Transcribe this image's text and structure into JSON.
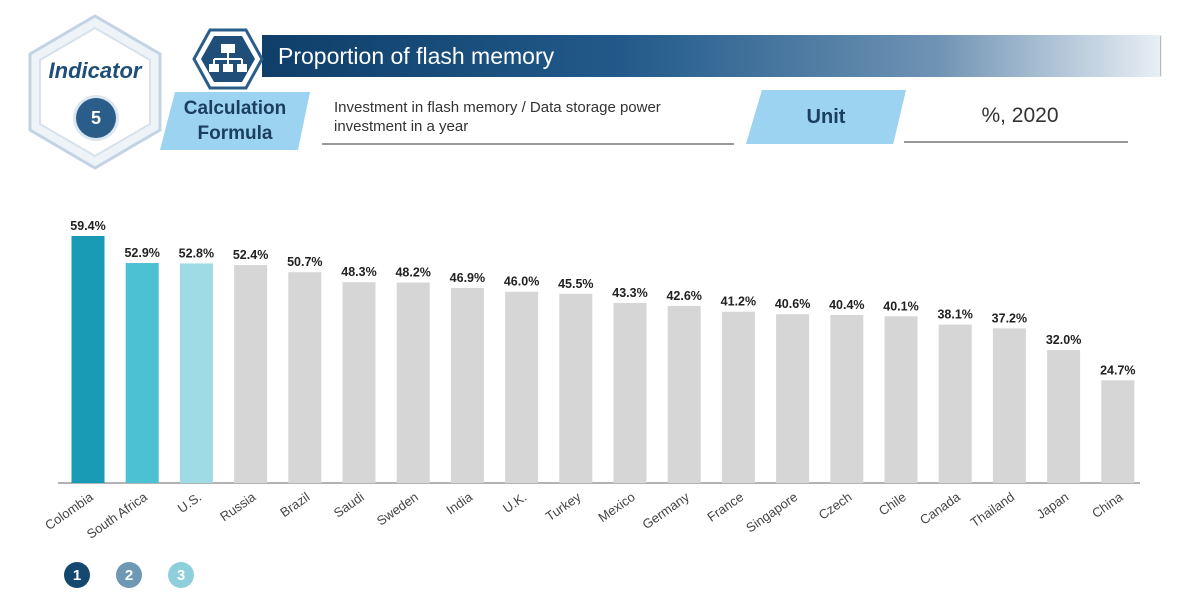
{
  "header": {
    "indicator_label": "Indicator",
    "indicator_number": "5",
    "title": "Proportion of flash memory",
    "formula_label_line1": "Calculation",
    "formula_label_line2": "Formula",
    "formula_line1": "Investment in flash memory / Data storage power",
    "formula_line2": "investment in a year",
    "unit_label": "Unit",
    "unit_value": "%, 2020",
    "title_icon": "network-hierarchy-icon"
  },
  "colors": {
    "rank1": "#1a9bb5",
    "rank2": "#4cc1d3",
    "rank3": "#9edbe5",
    "other": "#d6d6d6",
    "legend1": "#15486f",
    "legend2": "#6f98b5",
    "legend3": "#8fcfdc"
  },
  "legend": [
    {
      "label": "1"
    },
    {
      "label": "2"
    },
    {
      "label": "3"
    }
  ],
  "chart_data": {
    "type": "bar",
    "categories": [
      "Colombia",
      "South Africa",
      "U.S.",
      "Russia",
      "Brazil",
      "Saudi",
      "Sweden",
      "India",
      "U.K.",
      "Turkey",
      "Mexico",
      "Germany",
      "France",
      "Singapore",
      "Czech",
      "Chile",
      "Canada",
      "Thailand",
      "Japan",
      "China"
    ],
    "values": [
      59.4,
      52.9,
      52.8,
      52.4,
      50.7,
      48.3,
      48.2,
      46.9,
      46.0,
      45.5,
      43.3,
      42.6,
      41.2,
      40.6,
      40.4,
      40.1,
      38.1,
      37.2,
      32.0,
      24.7
    ],
    "data_labels": [
      "59.4%",
      "52.9%",
      "52.8%",
      "52.4%",
      "50.7%",
      "48.3%",
      "48.2%",
      "46.9%",
      "46.0%",
      "45.5%",
      "43.3%",
      "42.6%",
      "41.2%",
      "40.6%",
      "40.4%",
      "40.1%",
      "38.1%",
      "37.2%",
      "32.0%",
      "24.7%"
    ],
    "highlight_ranks": [
      1,
      2,
      3
    ],
    "ylim": [
      0,
      59.4
    ],
    "grid": false,
    "legend_placement": "bottom-left"
  }
}
